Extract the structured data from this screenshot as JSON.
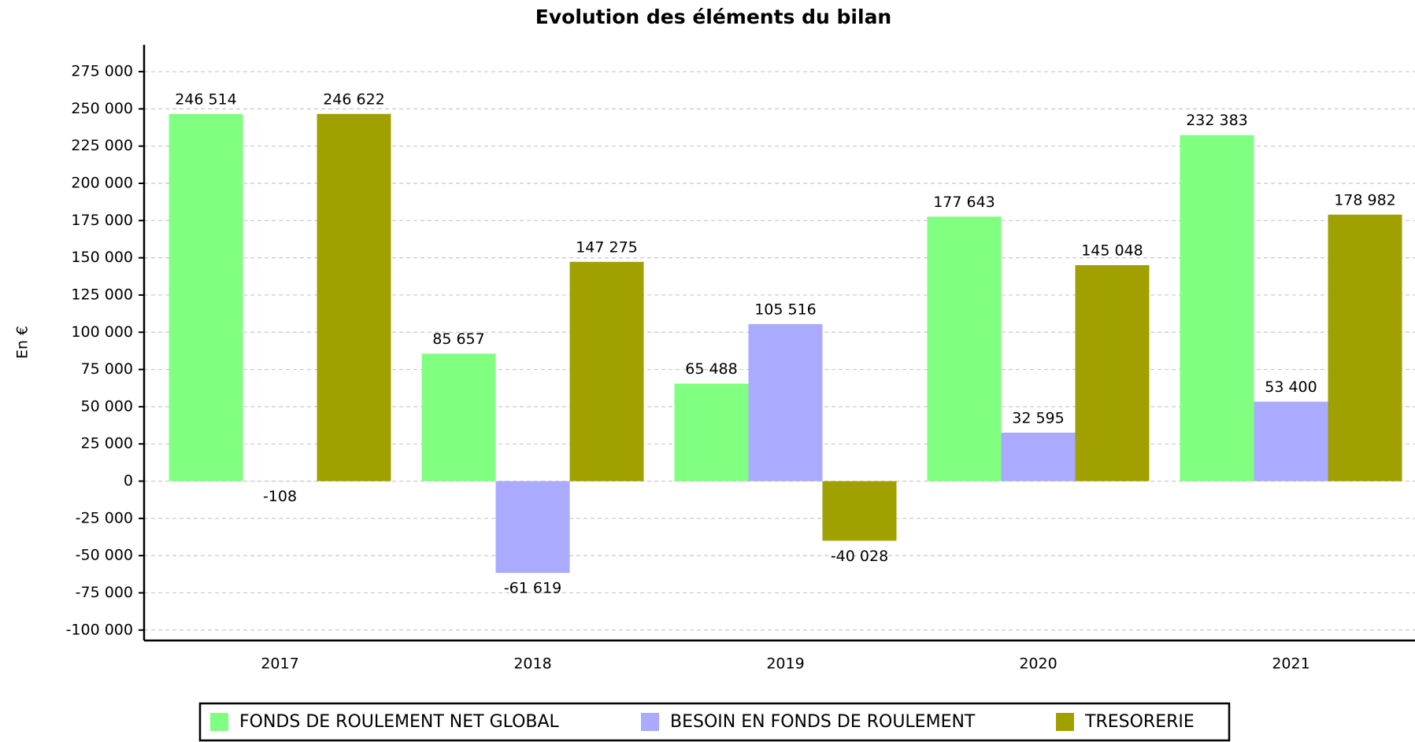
{
  "chart_data": {
    "type": "bar",
    "title": "Evolution des éléments du bilan",
    "y_label": "En €",
    "categories": [
      "2017",
      "2018",
      "2019",
      "2020",
      "2021"
    ],
    "series": [
      {
        "name": "FONDS DE ROULEMENT NET GLOBAL",
        "color": "#80ff80",
        "values": [
          246514,
          85657,
          65488,
          177643,
          232383
        ],
        "value_labels": [
          "246 514",
          "85 657",
          "65 488",
          "177 643",
          "232 383"
        ]
      },
      {
        "name": "BESOIN EN FONDS DE ROULEMENT",
        "color": "#aaaaff",
        "values": [
          -108,
          -61619,
          105516,
          32595,
          53400
        ],
        "value_labels": [
          "-108",
          "-61 619",
          "105 516",
          "32 595",
          "53 400"
        ]
      },
      {
        "name": "TRESORERIE",
        "color": "#a0a000",
        "values": [
          246622,
          147275,
          -40028,
          145048,
          178982
        ],
        "value_labels": [
          "246 622",
          "147 275",
          "-40 028",
          "145 048",
          "178 982"
        ]
      }
    ],
    "ylim": [
      -107000,
      293000
    ],
    "yticks": [
      {
        "value": -100000,
        "label": "-100 000"
      },
      {
        "value": -75000,
        "label": "-75 000"
      },
      {
        "value": -50000,
        "label": "-50 000"
      },
      {
        "value": -25000,
        "label": "-25 000"
      },
      0,
      {
        "value": 25000,
        "label": "25 000"
      },
      {
        "value": 50000,
        "label": "50 000"
      },
      {
        "value": 75000,
        "label": "75 000"
      },
      {
        "value": 100000,
        "label": "100 000"
      },
      {
        "value": 125000,
        "label": "125 000"
      },
      {
        "value": 150000,
        "label": "150 000"
      },
      {
        "value": 175000,
        "label": "175 000"
      },
      {
        "value": 200000,
        "label": "200 000"
      },
      {
        "value": 225000,
        "label": "225 000"
      },
      {
        "value": 250000,
        "label": "250 000"
      },
      {
        "value": 275000,
        "label": "275 000"
      }
    ],
    "grid": true
  }
}
